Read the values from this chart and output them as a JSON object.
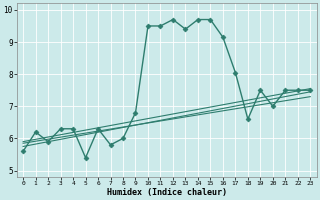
{
  "xlabel": "Humidex (Indice chaleur)",
  "ylabel": "",
  "xlim": [
    -0.5,
    23.5
  ],
  "ylim": [
    4.8,
    10.2
  ],
  "yticks": [
    5,
    6,
    7,
    8,
    9,
    10
  ],
  "xticks": [
    0,
    1,
    2,
    3,
    4,
    5,
    6,
    7,
    8,
    9,
    10,
    11,
    12,
    13,
    14,
    15,
    16,
    17,
    18,
    19,
    20,
    21,
    22,
    23
  ],
  "background_color": "#cceaea",
  "line_color": "#2e7d6e",
  "grid_color": "#ffffff",
  "lines": [
    {
      "x": [
        0,
        1,
        2,
        3,
        4,
        5,
        6,
        7,
        8,
        9,
        10,
        11,
        12,
        13,
        14,
        15,
        16,
        17,
        18,
        19,
        20,
        21,
        22,
        23
      ],
      "y": [
        5.6,
        6.2,
        5.9,
        6.3,
        6.3,
        5.4,
        6.3,
        5.8,
        6.0,
        6.8,
        9.5,
        9.5,
        9.7,
        9.4,
        9.7,
        9.7,
        9.15,
        8.05,
        6.6,
        7.5,
        7.0,
        7.5,
        7.5,
        7.5
      ],
      "marker": "D",
      "markersize": 2.5,
      "linewidth": 1.0
    },
    {
      "x": [
        0,
        23
      ],
      "y": [
        5.75,
        7.45
      ],
      "marker": null,
      "linewidth": 0.8
    },
    {
      "x": [
        0,
        23
      ],
      "y": [
        5.85,
        7.3
      ],
      "marker": null,
      "linewidth": 0.8
    },
    {
      "x": [
        0,
        23
      ],
      "y": [
        5.9,
        7.55
      ],
      "marker": null,
      "linewidth": 0.8
    }
  ]
}
